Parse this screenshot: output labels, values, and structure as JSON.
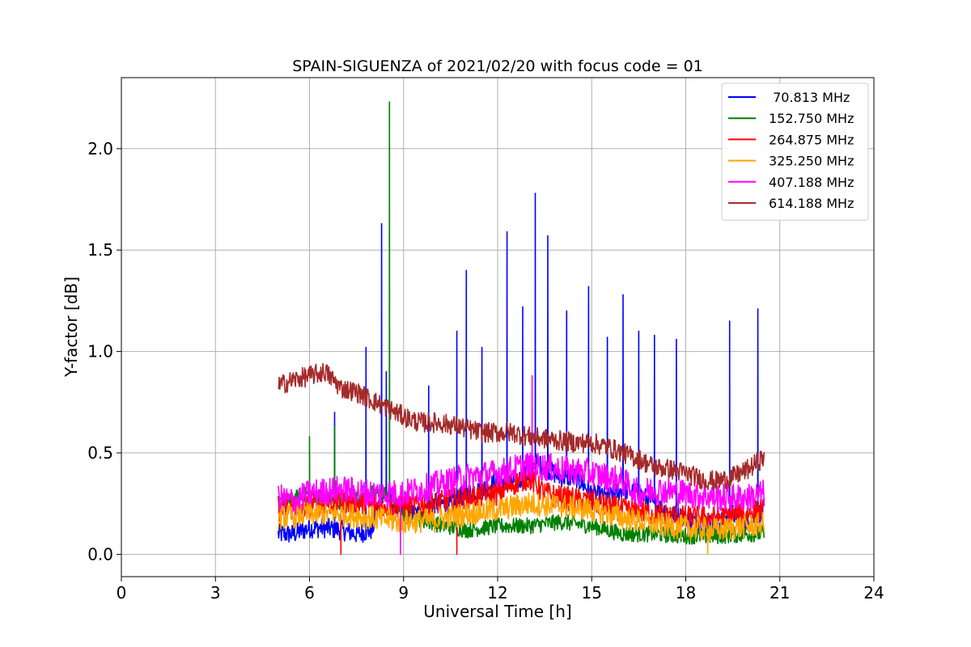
{
  "chart_data": {
    "type": "line",
    "title": "SPAIN-SIGUENZA of 2021/02/20 with focus code = 01",
    "xlabel": "Universal Time [h]",
    "ylabel": "Y-factor [dB]",
    "xlim": [
      0,
      24
    ],
    "ylim": [
      -0.11,
      2.35
    ],
    "xticks": [
      0,
      3,
      6,
      9,
      12,
      15,
      18,
      21,
      24
    ],
    "yticks": [
      0.0,
      0.5,
      1.0,
      1.5,
      2.0
    ],
    "xtick_labels": [
      "0",
      "3",
      "6",
      "9",
      "12",
      "15",
      "18",
      "21",
      "24"
    ],
    "ytick_labels": [
      "0.0",
      "0.5",
      "1.0",
      "1.5",
      "2.0"
    ],
    "grid": true,
    "legend_position": "top-right",
    "series": [
      {
        "name": " 70.813 MHz",
        "color": "#0000ff",
        "x": [
          5.0,
          5.5,
          6.0,
          6.5,
          7.0,
          7.5,
          8.0,
          8.3,
          8.5,
          9.0,
          9.5,
          10.0,
          10.5,
          11.0,
          11.5,
          12.0,
          12.5,
          13.0,
          13.2,
          13.5,
          14.0,
          14.5,
          15.0,
          15.5,
          16.0,
          16.5,
          17.0,
          17.5,
          18.0,
          18.5,
          19.0,
          19.5,
          20.0,
          20.3,
          20.5
        ],
        "y": [
          0.1,
          0.1,
          0.13,
          0.13,
          0.12,
          0.1,
          0.12,
          0.3,
          0.28,
          0.2,
          0.2,
          0.25,
          0.25,
          0.3,
          0.32,
          0.36,
          0.35,
          0.4,
          0.45,
          0.43,
          0.38,
          0.38,
          0.3,
          0.28,
          0.32,
          0.3,
          0.25,
          0.2,
          0.18,
          0.15,
          0.15,
          0.2,
          0.15,
          0.2,
          0.22
        ],
        "spikes": [
          [
            6.8,
            0.7
          ],
          [
            7.8,
            1.02
          ],
          [
            8.3,
            1.63
          ],
          [
            8.45,
            0.9
          ],
          [
            9.8,
            0.83
          ],
          [
            10.7,
            1.1
          ],
          [
            11.0,
            1.4
          ],
          [
            11.5,
            1.02
          ],
          [
            12.3,
            1.59
          ],
          [
            12.8,
            1.22
          ],
          [
            13.2,
            1.78
          ],
          [
            13.6,
            1.57
          ],
          [
            14.2,
            1.2
          ],
          [
            14.9,
            1.32
          ],
          [
            15.5,
            1.07
          ],
          [
            16.0,
            1.28
          ],
          [
            16.5,
            1.1
          ],
          [
            17.0,
            1.08
          ],
          [
            17.7,
            1.06
          ],
          [
            19.4,
            1.15
          ],
          [
            20.3,
            1.21
          ]
        ]
      },
      {
        "name": "152.750 MHz",
        "color": "#008000",
        "x": [
          5.0,
          6.0,
          7.0,
          8.0,
          8.5,
          9.0,
          10.0,
          11.0,
          12.0,
          13.0,
          14.0,
          15.0,
          16.0,
          17.0,
          18.0,
          19.0,
          20.0,
          20.5
        ],
        "y": [
          0.25,
          0.3,
          0.25,
          0.3,
          0.3,
          0.2,
          0.15,
          0.12,
          0.14,
          0.14,
          0.16,
          0.14,
          0.1,
          0.1,
          0.09,
          0.09,
          0.1,
          0.1
        ],
        "spikes": [
          [
            6.0,
            0.58
          ],
          [
            6.8,
            0.63
          ],
          [
            8.55,
            2.23
          ]
        ]
      },
      {
        "name": "264.875 MHz",
        "color": "#ff0000",
        "x": [
          5.0,
          6.0,
          7.0,
          8.0,
          9.0,
          10.0,
          11.0,
          12.0,
          12.5,
          13.0,
          13.5,
          14.0,
          15.0,
          16.0,
          17.0,
          18.0,
          19.0,
          20.0,
          20.5
        ],
        "y": [
          0.22,
          0.24,
          0.26,
          0.24,
          0.24,
          0.25,
          0.28,
          0.3,
          0.35,
          0.38,
          0.3,
          0.28,
          0.26,
          0.22,
          0.2,
          0.18,
          0.18,
          0.2,
          0.22
        ],
        "spikes": [
          [
            7.0,
            0.0
          ],
          [
            10.7,
            0.0
          ]
        ]
      },
      {
        "name": "325.250 MHz",
        "color": "#ffa500",
        "x": [
          5.0,
          6.0,
          7.0,
          8.0,
          9.0,
          10.0,
          11.0,
          12.0,
          13.0,
          14.0,
          15.0,
          16.0,
          17.0,
          18.0,
          19.0,
          20.0,
          20.5
        ],
        "y": [
          0.18,
          0.2,
          0.2,
          0.18,
          0.16,
          0.17,
          0.2,
          0.22,
          0.25,
          0.24,
          0.22,
          0.18,
          0.15,
          0.13,
          0.12,
          0.14,
          0.15
        ],
        "spikes": [
          [
            18.7,
            0.0
          ]
        ]
      },
      {
        "name": "407.188 MHz",
        "color": "#ff00ff",
        "x": [
          5.0,
          5.5,
          6.0,
          7.0,
          8.0,
          9.0,
          10.0,
          11.0,
          12.0,
          12.5,
          13.0,
          14.0,
          15.0,
          16.0,
          16.5,
          17.0,
          18.0,
          19.0,
          20.0,
          20.5
        ],
        "y": [
          0.28,
          0.26,
          0.3,
          0.32,
          0.3,
          0.3,
          0.34,
          0.38,
          0.4,
          0.42,
          0.44,
          0.42,
          0.4,
          0.36,
          0.3,
          0.32,
          0.3,
          0.28,
          0.28,
          0.3
        ],
        "spikes": [
          [
            13.1,
            0.88
          ],
          [
            8.9,
            0.0
          ]
        ]
      },
      {
        "name": "614.188 MHz",
        "color": "#a52a2a",
        "x": [
          5.0,
          5.5,
          6.0,
          6.5,
          7.0,
          7.5,
          8.0,
          8.5,
          9.0,
          9.5,
          10.0,
          10.5,
          11.0,
          11.5,
          12.0,
          12.5,
          13.0,
          13.5,
          14.0,
          14.5,
          15.0,
          15.5,
          16.0,
          16.5,
          17.0,
          17.5,
          18.0,
          18.5,
          19.0,
          19.5,
          20.0,
          20.5
        ],
        "y": [
          0.83,
          0.86,
          0.88,
          0.9,
          0.82,
          0.8,
          0.76,
          0.72,
          0.68,
          0.65,
          0.65,
          0.64,
          0.62,
          0.6,
          0.6,
          0.6,
          0.58,
          0.57,
          0.56,
          0.55,
          0.55,
          0.53,
          0.5,
          0.47,
          0.43,
          0.42,
          0.4,
          0.37,
          0.36,
          0.38,
          0.42,
          0.48
        ],
        "spikes": []
      }
    ]
  }
}
